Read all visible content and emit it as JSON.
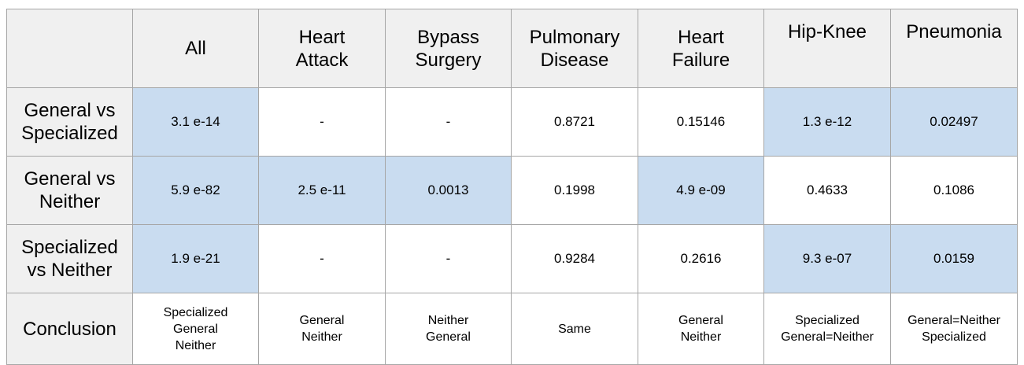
{
  "header": {
    "corner": "",
    "columns": [
      [
        "All"
      ],
      [
        "Heart",
        "Attack"
      ],
      [
        "Bypass",
        "Surgery"
      ],
      [
        "Pulmonary",
        "Disease"
      ],
      [
        "Heart",
        "Failure"
      ],
      [
        "Hip-Knee"
      ],
      [
        "Pneumonia"
      ]
    ]
  },
  "rows": [
    {
      "label": [
        "General vs",
        "Specialized"
      ],
      "cells": [
        {
          "value": "3.1 e-14",
          "highlight": true
        },
        {
          "value": "-",
          "highlight": false
        },
        {
          "value": "-",
          "highlight": false
        },
        {
          "value": "0.8721",
          "highlight": false
        },
        {
          "value": "0.15146",
          "highlight": false
        },
        {
          "value": "1.3 e-12",
          "highlight": true
        },
        {
          "value": "0.02497",
          "highlight": true
        }
      ]
    },
    {
      "label": [
        "General vs",
        "Neither"
      ],
      "cells": [
        {
          "value": "5.9 e-82",
          "highlight": true
        },
        {
          "value": "2.5 e-11",
          "highlight": true
        },
        {
          "value": "0.0013",
          "highlight": true
        },
        {
          "value": "0.1998",
          "highlight": false
        },
        {
          "value": "4.9 e-09",
          "highlight": true
        },
        {
          "value": "0.4633",
          "highlight": false
        },
        {
          "value": "0.1086",
          "highlight": false
        }
      ]
    },
    {
      "label": [
        "Specialized",
        "vs Neither"
      ],
      "cells": [
        {
          "value": "1.9 e-21",
          "highlight": true
        },
        {
          "value": "-",
          "highlight": false
        },
        {
          "value": "-",
          "highlight": false
        },
        {
          "value": "0.9284",
          "highlight": false
        },
        {
          "value": "0.2616",
          "highlight": false
        },
        {
          "value": "9.3 e-07",
          "highlight": true
        },
        {
          "value": "0.0159",
          "highlight": true
        }
      ]
    }
  ],
  "conclusion": {
    "label": "Conclusion",
    "cells": [
      [
        "Specialized",
        "General",
        "Neither"
      ],
      [
        "General",
        "Neither"
      ],
      [
        "Neither",
        "General"
      ],
      [
        "Same"
      ],
      [
        "General",
        "Neither"
      ],
      [
        "Specialized",
        "General=Neither"
      ],
      [
        "General=Neither",
        "Specialized"
      ]
    ]
  },
  "colors": {
    "highlight": "#c9dcf0",
    "header_bg": "#f0f0f0",
    "border": "#a6a6a6"
  }
}
